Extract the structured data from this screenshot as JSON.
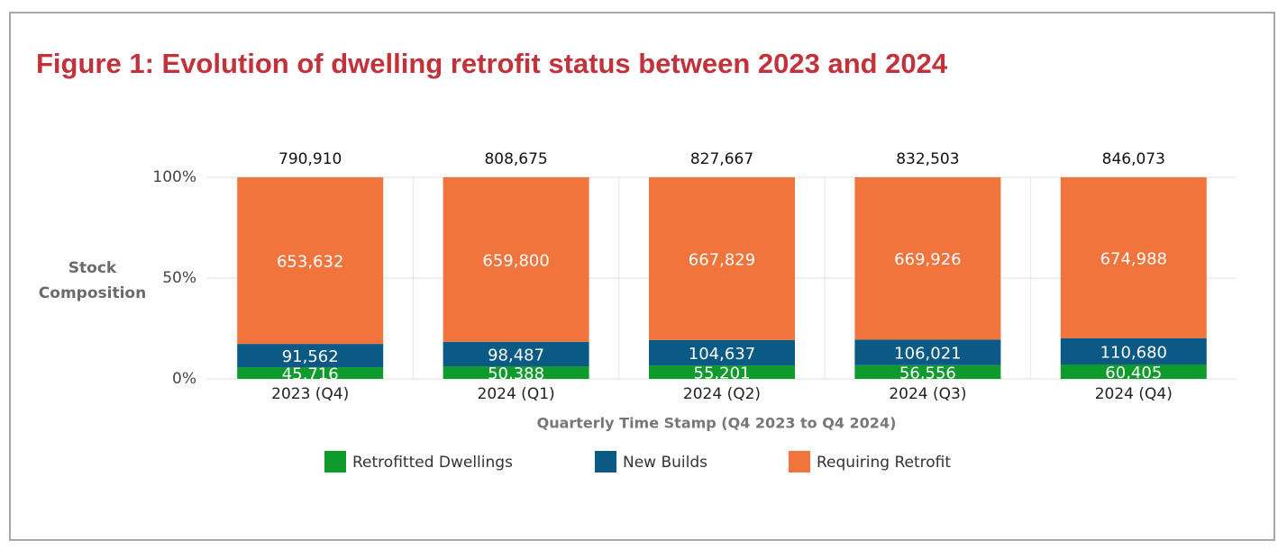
{
  "chart_data": {
    "type": "bar",
    "stacking": "percent",
    "title": "Figure 1: Evolution of dwelling retrofit status between 2023 and 2024",
    "ylabel": "Stock Composition",
    "xlabel": "Quarterly Time Stamp (Q4 2023 to Q4 2024)",
    "categories": [
      "2023 (Q4)",
      "2024 (Q1)",
      "2024 (Q2)",
      "2024 (Q3)",
      "2024 (Q4)"
    ],
    "totals": [
      790910,
      808675,
      827667,
      832503,
      846073
    ],
    "total_labels": [
      "790,910",
      "808,675",
      "827,667",
      "832,503",
      "846,073"
    ],
    "series": [
      {
        "name": "Retrofitted Dwellings",
        "color": "#0f9a2d",
        "values": [
          45716,
          50388,
          55201,
          56556,
          60405
        ],
        "value_labels": [
          "45,716",
          "50,388",
          "55,201",
          "56,556",
          "60,405"
        ]
      },
      {
        "name": "New Builds",
        "color": "#0b5a86",
        "values": [
          91562,
          98487,
          104637,
          106021,
          110680
        ],
        "value_labels": [
          "91,562",
          "98,487",
          "104,637",
          "106,021",
          "110,680"
        ]
      },
      {
        "name": "Requiring Retrofit",
        "color": "#f2743d",
        "values": [
          653632,
          659800,
          667829,
          669926,
          674988
        ],
        "value_labels": [
          "653,632",
          "659,800",
          "667,829",
          "669,926",
          "674,988"
        ]
      }
    ],
    "ylim": [
      0,
      100
    ],
    "yticks": [
      {
        "value": 0,
        "label": "0%"
      },
      {
        "value": 50,
        "label": "50%"
      },
      {
        "value": 100,
        "label": "100%"
      }
    ],
    "grid": true,
    "legend": "bottom"
  }
}
